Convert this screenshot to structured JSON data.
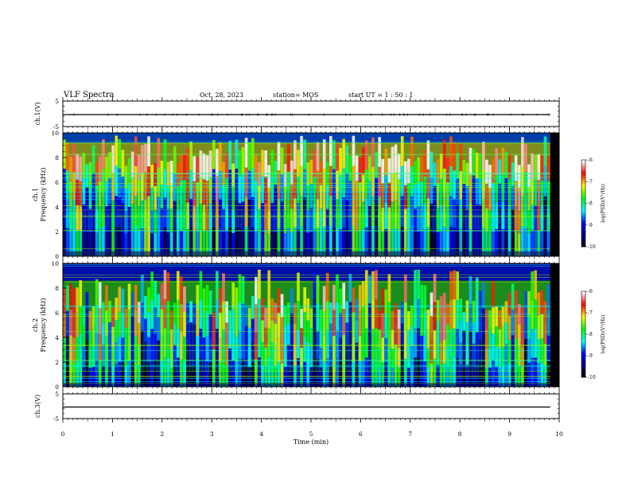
{
  "header": {
    "title": "VLF Spectra",
    "date": "Oct. 28, 2023",
    "station": "station= MOS",
    "start_ut": "start  UT =   1 : 50 : 1"
  },
  "colors": {
    "background": "#ffffff",
    "axis": "#000000",
    "colormap": [
      "#000000",
      "#000080",
      "#0000ff",
      "#00ffff",
      "#00ff00",
      "#ffff00",
      "#ff0000",
      "#ffffff"
    ]
  },
  "chart_data": [
    {
      "type": "line",
      "id": "ch1-waveform",
      "ylabel": "ch.1(V)",
      "ylim": [
        -5,
        5
      ],
      "yticks": [
        "5",
        "-5"
      ],
      "xlim": [
        0,
        10
      ],
      "x_end": 9.82,
      "series": [
        {
          "values_approx": 0.0,
          "x": [
            0,
            9.82
          ],
          "y": [
            0,
            0
          ]
        }
      ]
    },
    {
      "type": "heatmap",
      "id": "ch1-spectrogram",
      "ylabel": "ch.1  Frequency (kHz)",
      "ylim": [
        0,
        10
      ],
      "yticks": [
        "0",
        "2",
        "4",
        "6",
        "8",
        "10"
      ],
      "xlim": [
        0,
        10
      ],
      "x_end": 9.82,
      "colorbar": {
        "label": "log(PSD)(V²/Hz)",
        "range": [
          -10,
          -6
        ],
        "ticks": [
          "-6",
          "-7",
          "-8",
          "-9",
          "-10"
        ]
      }
    },
    {
      "type": "heatmap",
      "id": "ch2-spectrogram",
      "ylabel": "ch.2  Frequency (kHz)",
      "ylim": [
        0,
        10
      ],
      "yticks": [
        "0",
        "2",
        "4",
        "6",
        "8",
        "10"
      ],
      "xlim": [
        0,
        10
      ],
      "x_end": 9.82,
      "colorbar": {
        "label": "log(PSD)(V²/Hz)",
        "range": [
          -10,
          -6
        ],
        "ticks": [
          "-6",
          "-7",
          "-8",
          "-9",
          "-10"
        ]
      }
    },
    {
      "type": "line",
      "id": "ch3-waveform",
      "ylabel": "ch.3(V)",
      "ylim": [
        -5,
        5
      ],
      "yticks": [
        "5",
        "-5"
      ],
      "xlim": [
        0,
        10
      ],
      "x_end": 9.82,
      "series": [
        {
          "x": [
            0,
            9.82
          ],
          "y": [
            0,
            0
          ]
        }
      ]
    }
  ],
  "xaxis": {
    "label": "Time  (min)",
    "ticks": [
      "0",
      "1",
      "2",
      "3",
      "4",
      "5",
      "6",
      "7",
      "8",
      "9",
      "10"
    ]
  }
}
